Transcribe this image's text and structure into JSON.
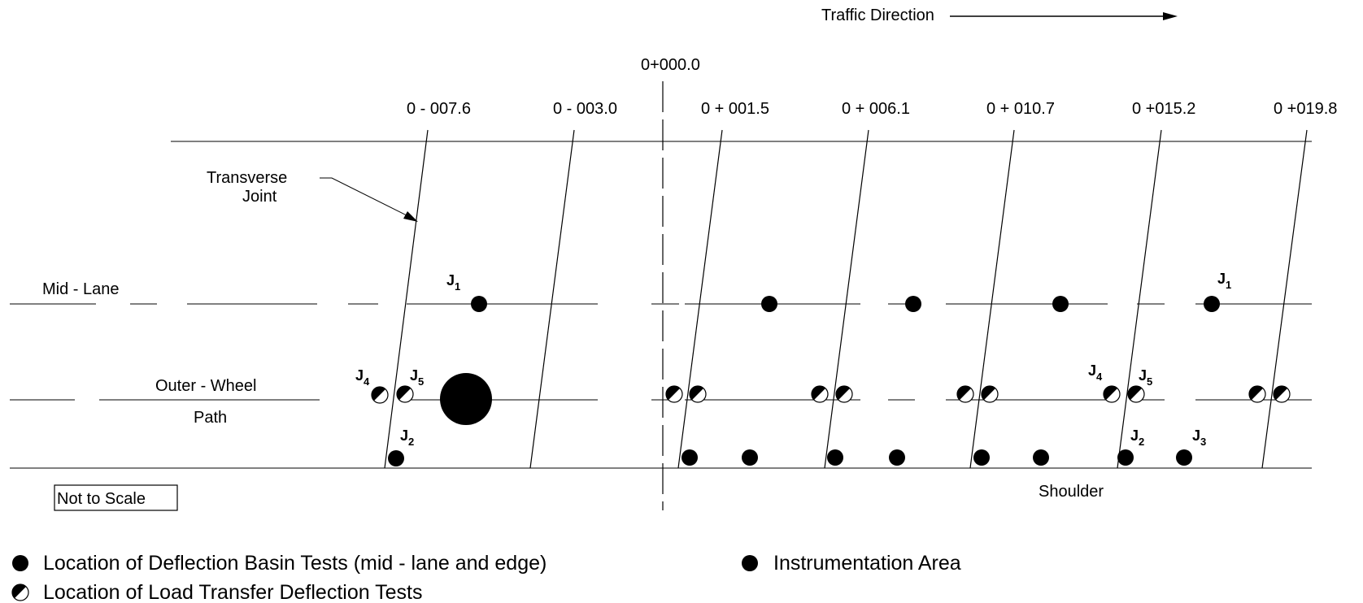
{
  "header": {
    "traffic_direction": "Traffic Direction",
    "origin_station": "0+000.0"
  },
  "stations": [
    "0 - 007.6",
    "0 - 003.0",
    "0 + 001.5",
    "0 + 006.1",
    "0 + 010.7",
    "0 +015.2",
    "0 +019.8"
  ],
  "annotations": {
    "transverse_joint_line1": "Transverse",
    "transverse_joint_line2": "Joint",
    "mid_lane": "Mid - Lane",
    "outer_wheel_line1": "Outer - Wheel",
    "outer_wheel_line2": "Path",
    "not_to_scale": "Not to Scale",
    "shoulder": "Shoulder"
  },
  "joint_labels": [
    {
      "letter": "J",
      "sub": "1"
    },
    {
      "letter": "J",
      "sub": "1"
    },
    {
      "letter": "J",
      "sub": "4"
    },
    {
      "letter": "J",
      "sub": "5"
    },
    {
      "letter": "J",
      "sub": "2"
    },
    {
      "letter": "J",
      "sub": "4"
    },
    {
      "letter": "J",
      "sub": "5"
    },
    {
      "letter": "J",
      "sub": "2"
    },
    {
      "letter": "J",
      "sub": "3"
    }
  ],
  "legend": {
    "deflection_basin": "Location of Deflection Basin Tests (mid - lane and edge)",
    "instrumentation": "Instrumentation Area",
    "load_transfer": "Location of Load Transfer Deflection Tests"
  }
}
